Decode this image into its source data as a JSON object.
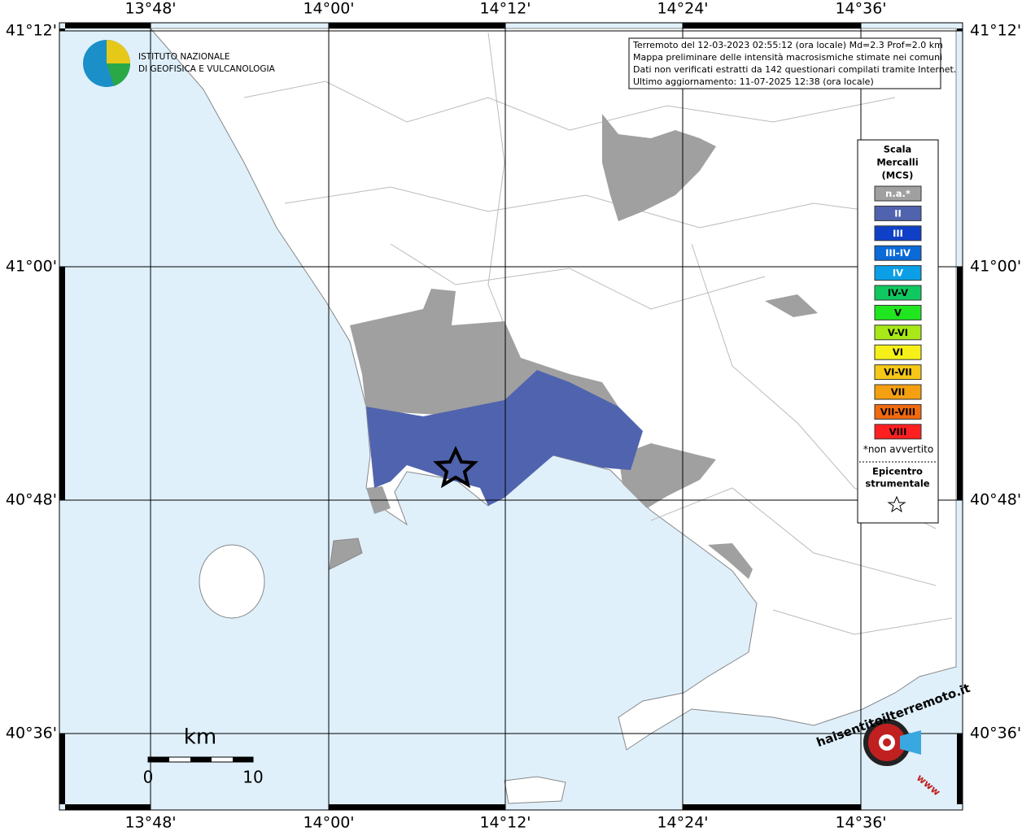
{
  "map": {
    "lon_labels": [
      "13°48'",
      "14°00'",
      "14°12'",
      "14°24'",
      "14°36'"
    ],
    "lat_labels": [
      "41°12'",
      "41°00'",
      "40°48'",
      "40°36'"
    ],
    "info_lines": [
      "Terremoto del 12-03-2023 02:55:12 (ora locale) Md=2.3 Prof=2.0 km",
      "Mappa preliminare delle intensità macrosismiche stimate nei comuni",
      "Dati non verificati estratti da 142 questionari compilati tramite Internet.",
      "Ultimo aggiornamento: 11-07-2025 12:38 (ora locale)"
    ],
    "logo": {
      "line1": "ISTITUTO NAZIONALE",
      "line2": "DI GEOFISICA E VULCANOLOGIA"
    },
    "legend": {
      "title": [
        "Scala",
        "Mercalli",
        "(MCS)"
      ],
      "items": [
        {
          "label": "n.a.*",
          "color": "#a0a0a0"
        },
        {
          "label": "II",
          "color": "#5063ae"
        },
        {
          "label": "III",
          "color": "#1040c8"
        },
        {
          "label": "III-IV",
          "color": "#0a6ad8"
        },
        {
          "label": "IV",
          "color": "#0a9fe6"
        },
        {
          "label": "IV-V",
          "color": "#10c860"
        },
        {
          "label": "V",
          "color": "#20e620"
        },
        {
          "label": "V-VI",
          "color": "#a8e818"
        },
        {
          "label": "VI",
          "color": "#f5f018"
        },
        {
          "label": "VI-VII",
          "color": "#f5c818"
        },
        {
          "label": "VII",
          "color": "#f5a010"
        },
        {
          "label": "VII-VIII",
          "color": "#f06a10"
        },
        {
          "label": "VIII",
          "color": "#ff2020"
        }
      ],
      "note": "*non avvertito",
      "epicenter": [
        "Epicentro",
        "strumentale"
      ]
    },
    "scale_bar": {
      "unit": "km",
      "start": "0",
      "end": "10"
    },
    "site_logo": {
      "name": "haisentitoilterremoto.it",
      "www": "www"
    }
  }
}
